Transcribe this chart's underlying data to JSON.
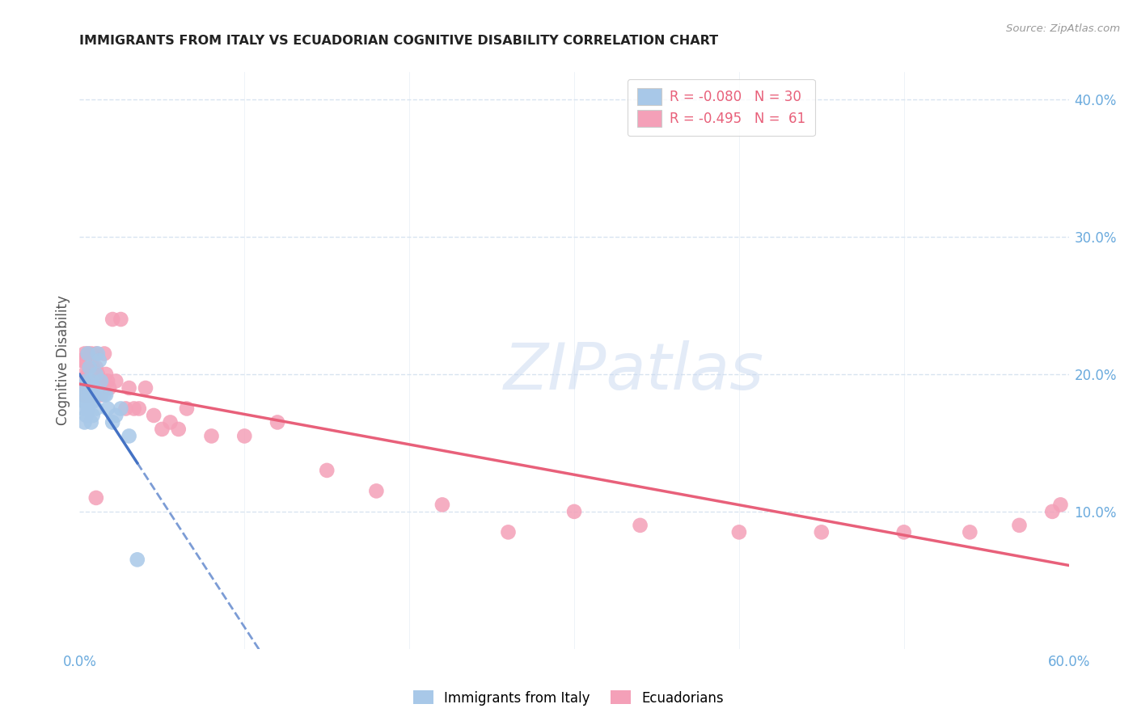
{
  "title": "IMMIGRANTS FROM ITALY VS ECUADORIAN COGNITIVE DISABILITY CORRELATION CHART",
  "source": "Source: ZipAtlas.com",
  "ylabel": "Cognitive Disability",
  "xlim": [
    0.0,
    0.6
  ],
  "ylim": [
    0.0,
    0.42
  ],
  "yticks": [
    0.1,
    0.2,
    0.3,
    0.4
  ],
  "ytick_labels": [
    "10.0%",
    "20.0%",
    "30.0%",
    "40.0%"
  ],
  "xticks": [
    0.0,
    0.1,
    0.2,
    0.3,
    0.4,
    0.5,
    0.6
  ],
  "xtick_labels": [
    "0.0%",
    "",
    "",
    "",
    "",
    "",
    "60.0%"
  ],
  "watermark": "ZIPatlas",
  "legend_italy_R": "R = -0.080",
  "legend_italy_N": "N = 30",
  "legend_ecuador_R": "R = -0.495",
  "legend_ecuador_N": "N =  61",
  "color_italy": "#a8c8e8",
  "color_ecuador": "#f4a0b8",
  "color_italy_line": "#4472c4",
  "color_ecuador_line": "#e8607a",
  "color_axis_labels": "#6aaadd",
  "color_grid": "#d8e4f0",
  "color_title": "#222222",
  "italy_x": [
    0.001,
    0.002,
    0.002,
    0.003,
    0.003,
    0.004,
    0.004,
    0.005,
    0.005,
    0.006,
    0.006,
    0.007,
    0.007,
    0.008,
    0.008,
    0.009,
    0.009,
    0.01,
    0.01,
    0.011,
    0.012,
    0.013,
    0.015,
    0.016,
    0.017,
    0.02,
    0.022,
    0.025,
    0.03,
    0.035
  ],
  "italy_y": [
    0.19,
    0.175,
    0.185,
    0.18,
    0.165,
    0.195,
    0.17,
    0.175,
    0.215,
    0.185,
    0.205,
    0.195,
    0.165,
    0.17,
    0.18,
    0.19,
    0.185,
    0.2,
    0.175,
    0.215,
    0.21,
    0.195,
    0.185,
    0.185,
    0.175,
    0.165,
    0.17,
    0.175,
    0.155,
    0.065
  ],
  "ecuador_x": [
    0.001,
    0.001,
    0.002,
    0.002,
    0.002,
    0.003,
    0.003,
    0.004,
    0.004,
    0.005,
    0.005,
    0.005,
    0.006,
    0.006,
    0.007,
    0.007,
    0.008,
    0.008,
    0.009,
    0.009,
    0.01,
    0.01,
    0.011,
    0.011,
    0.012,
    0.013,
    0.014,
    0.015,
    0.016,
    0.017,
    0.018,
    0.02,
    0.022,
    0.025,
    0.028,
    0.03,
    0.033,
    0.036,
    0.04,
    0.045,
    0.05,
    0.055,
    0.06,
    0.065,
    0.08,
    0.1,
    0.12,
    0.15,
    0.18,
    0.22,
    0.26,
    0.3,
    0.34,
    0.4,
    0.45,
    0.5,
    0.54,
    0.57,
    0.59,
    0.595,
    0.01
  ],
  "ecuador_y": [
    0.195,
    0.21,
    0.195,
    0.185,
    0.21,
    0.2,
    0.215,
    0.195,
    0.185,
    0.2,
    0.19,
    0.215,
    0.205,
    0.185,
    0.2,
    0.215,
    0.19,
    0.205,
    0.185,
    0.195,
    0.205,
    0.215,
    0.2,
    0.185,
    0.195,
    0.185,
    0.195,
    0.215,
    0.2,
    0.195,
    0.19,
    0.24,
    0.195,
    0.24,
    0.175,
    0.19,
    0.175,
    0.175,
    0.19,
    0.17,
    0.16,
    0.165,
    0.16,
    0.175,
    0.155,
    0.155,
    0.165,
    0.13,
    0.115,
    0.105,
    0.085,
    0.1,
    0.09,
    0.085,
    0.085,
    0.085,
    0.085,
    0.09,
    0.1,
    0.105,
    0.11
  ],
  "background_color": "#ffffff"
}
